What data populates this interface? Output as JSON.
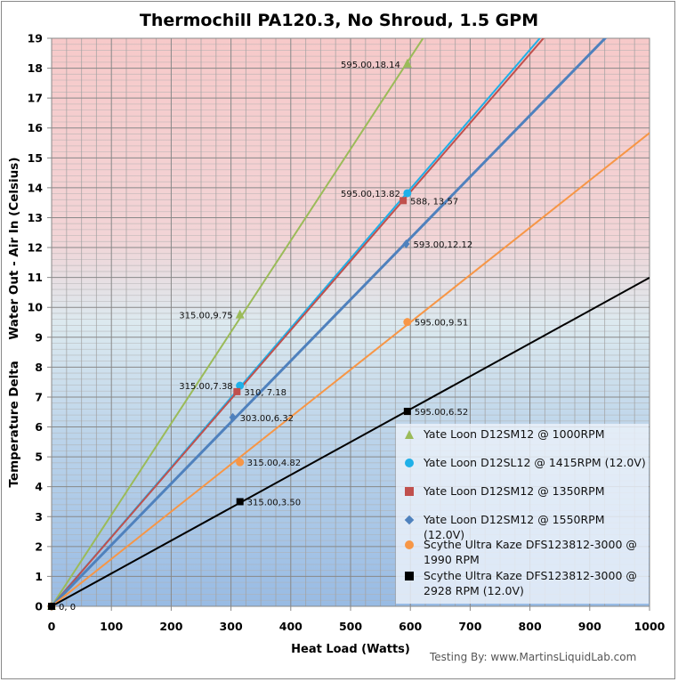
{
  "chart_data": {
    "type": "scatter",
    "title": "Thermochill PA120.3, No Shroud, 1.5 GPM",
    "xlabel": "Heat Load (Watts)",
    "ylabel": "Temperature Delta     Water Out - Air In (Celsius)",
    "xlim": [
      0,
      1000
    ],
    "ylim": [
      0,
      19
    ],
    "xticks": [
      "0",
      "100",
      "200",
      "300",
      "400",
      "500",
      "600",
      "700",
      "800",
      "900",
      "1000"
    ],
    "yticks": [
      "0",
      "1",
      "2",
      "3",
      "4",
      "5",
      "6",
      "7",
      "8",
      "9",
      "10",
      "11",
      "12",
      "13",
      "14",
      "15",
      "16",
      "17",
      "18",
      "19"
    ],
    "grid": true,
    "legend_position": "bottom-right",
    "origin_label": "0, 0",
    "series": [
      {
        "name": "Yate Loon D12SM12  @ 1000RPM",
        "color": "#9bbb59",
        "marker": "triangle",
        "trendline": true,
        "points": [
          {
            "x": 0,
            "y": 0
          },
          {
            "x": 315,
            "y": 9.75,
            "label": "315.00,9.75",
            "side": "left"
          },
          {
            "x": 595,
            "y": 18.14,
            "label": "595.00,18.14",
            "side": "left"
          }
        ]
      },
      {
        "name": "Yate Loon D12SL12  @ 1415RPM  (12.0V)",
        "color": "#1fb0e8",
        "marker": "circle",
        "trendline": true,
        "points": [
          {
            "x": 0,
            "y": 0
          },
          {
            "x": 315,
            "y": 7.38,
            "label": "315.00,7.38",
            "side": "left"
          },
          {
            "x": 595,
            "y": 13.82,
            "label": "595.00,13.82",
            "side": "left"
          }
        ]
      },
      {
        "name": "Yate Loon D12SM12  @ 1350RPM",
        "color": "#c0504d",
        "marker": "square",
        "trendline": true,
        "points": [
          {
            "x": 0,
            "y": 0
          },
          {
            "x": 310,
            "y": 7.18,
            "label": "310, 7.18",
            "side": "right"
          },
          {
            "x": 588,
            "y": 13.57,
            "label": "588, 13.57",
            "side": "right"
          }
        ]
      },
      {
        "name": "Yate Loon D12SM12  @ 1550RPM  (12.0V)",
        "color": "#4f81bd",
        "marker": "diamond",
        "trendline": true,
        "points": [
          {
            "x": 0,
            "y": 0
          },
          {
            "x": 303,
            "y": 6.32,
            "label": "303.00,6.32",
            "side": "right"
          },
          {
            "x": 593,
            "y": 12.12,
            "label": "593.00,12.12",
            "side": "right"
          }
        ]
      },
      {
        "name": "Scythe Ultra Kaze DFS123812-3000  @ 1990 RPM",
        "color": "#f79646",
        "marker": "circle",
        "trendline": true,
        "points": [
          {
            "x": 0,
            "y": 0
          },
          {
            "x": 315,
            "y": 4.82,
            "label": "315.00,4.82",
            "side": "right"
          },
          {
            "x": 595,
            "y": 9.51,
            "label": "595.00,9.51",
            "side": "right"
          }
        ]
      },
      {
        "name": "Scythe Ultra Kaze DFS123812-3000  @ 2928 RPM (12.0V)",
        "color": "#000000",
        "marker": "square",
        "trendline": true,
        "points": [
          {
            "x": 0,
            "y": 0
          },
          {
            "x": 315,
            "y": 3.5,
            "label": "315.00,3.50",
            "side": "right"
          },
          {
            "x": 595,
            "y": 6.52,
            "label": "595.00,6.52",
            "side": "right"
          }
        ]
      }
    ]
  },
  "credit": "Testing By: www.MartinsLiquidLab.com"
}
